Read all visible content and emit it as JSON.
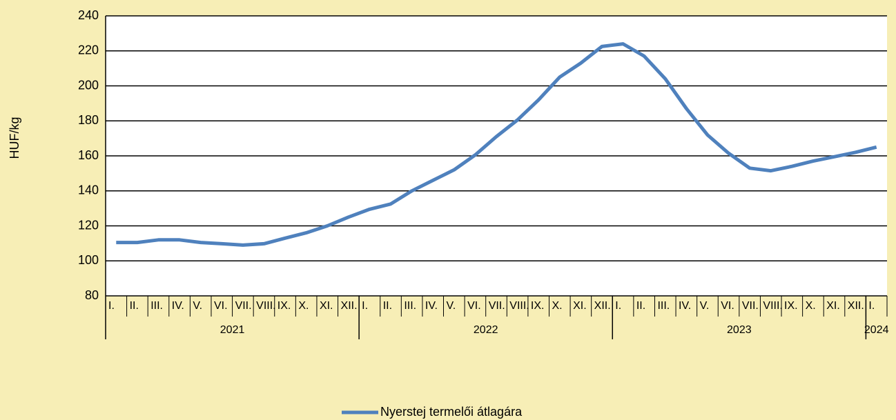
{
  "chart_data": {
    "type": "line",
    "y_label": "HUF/kg",
    "categories": [
      "I.",
      "II.",
      "III.",
      "IV.",
      "V.",
      "VI.",
      "VII.",
      "VIII.",
      "IX.",
      "X.",
      "XI.",
      "XII.",
      "I.",
      "II.",
      "III.",
      "IV.",
      "V.",
      "VI.",
      "VII.",
      "VIII.",
      "IX.",
      "X.",
      "XI.",
      "XII.",
      "I.",
      "II.",
      "III.",
      "IV.",
      "V.",
      "VI.",
      "VII.",
      "VIII.",
      "IX.",
      "X.",
      "XI.",
      "XII.",
      "I."
    ],
    "year_groups": [
      {
        "label": "2021",
        "span": 12
      },
      {
        "label": "2022",
        "span": 12
      },
      {
        "label": "2023",
        "span": 12
      },
      {
        "label": "2024",
        "span": 1
      }
    ],
    "series": [
      {
        "name": "Nyerstej termelői átlagára",
        "color": "#4f81bd",
        "values": [
          110.5,
          110.5,
          112,
          112,
          110.5,
          109.8,
          109,
          109.8,
          113,
          116,
          120,
          125,
          129.5,
          132.5,
          140,
          146,
          152,
          160.5,
          171,
          180.5,
          192,
          205,
          213,
          222.5,
          224,
          217,
          204,
          187,
          172,
          161.5,
          153,
          151.5,
          154,
          157,
          159.5,
          162,
          165
        ]
      }
    ],
    "ylim": [
      80,
      240
    ],
    "yticks": [
      80,
      100,
      120,
      140,
      160,
      180,
      200,
      220,
      240
    ],
    "grid": true,
    "legend": "bottom"
  }
}
